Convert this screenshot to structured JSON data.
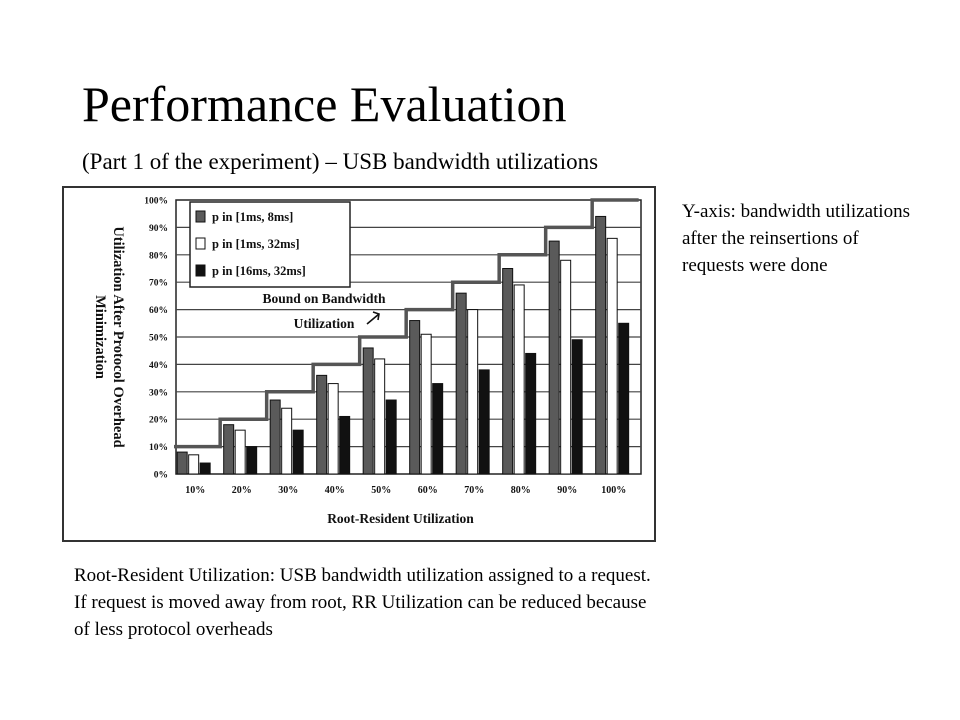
{
  "slide": {
    "title": "Performance Evaluation",
    "subtitle": "(Part 1 of the experiment) – USB bandwidth utilizations",
    "side_note": "Y-axis: bandwidth utilizations after the reinsertions of requests were done",
    "bottom_note": [
      "Root-Resident Utilization: USB bandwidth utilization assigned to a request.",
      "If request is moved away from root, RR Utilization can be reduced because",
      "of less protocol overheads"
    ]
  },
  "chart_data": {
    "type": "bar",
    "title": "",
    "xlabel": "Root-Resident Utilization",
    "ylabel": "Utilization After Protocol Overhead Minimization",
    "categories": [
      "10%",
      "20%",
      "30%",
      "40%",
      "50%",
      "60%",
      "70%",
      "80%",
      "90%",
      "100%"
    ],
    "yticks": [
      "0%",
      "10%",
      "20%",
      "30%",
      "40%",
      "50%",
      "60%",
      "70%",
      "80%",
      "90%",
      "100%"
    ],
    "ylim": [
      0,
      100
    ],
    "grid": true,
    "legend_position": "top-left",
    "series": [
      {
        "name": "p in [1ms, 8ms]",
        "color": "#5a5a5a",
        "values": [
          8,
          18,
          27,
          36,
          46,
          56,
          66,
          75,
          85,
          94
        ]
      },
      {
        "name": "p in [1ms, 32ms]",
        "color": "#ffffff",
        "values": [
          7,
          16,
          24,
          33,
          42,
          51,
          60,
          69,
          78,
          86
        ]
      },
      {
        "name": "p in [16ms, 32ms]",
        "color": "#111111",
        "values": [
          4,
          10,
          16,
          21,
          27,
          33,
          38,
          44,
          49,
          55
        ]
      }
    ],
    "bound_line": {
      "name": "Bound on Bandwidth Utilization",
      "color": "#555555",
      "steps": [
        10,
        20,
        30,
        40,
        50,
        60,
        70,
        80,
        90,
        100
      ]
    },
    "annotations": [
      {
        "text": "Bound on Bandwidth Utilization"
      }
    ]
  }
}
